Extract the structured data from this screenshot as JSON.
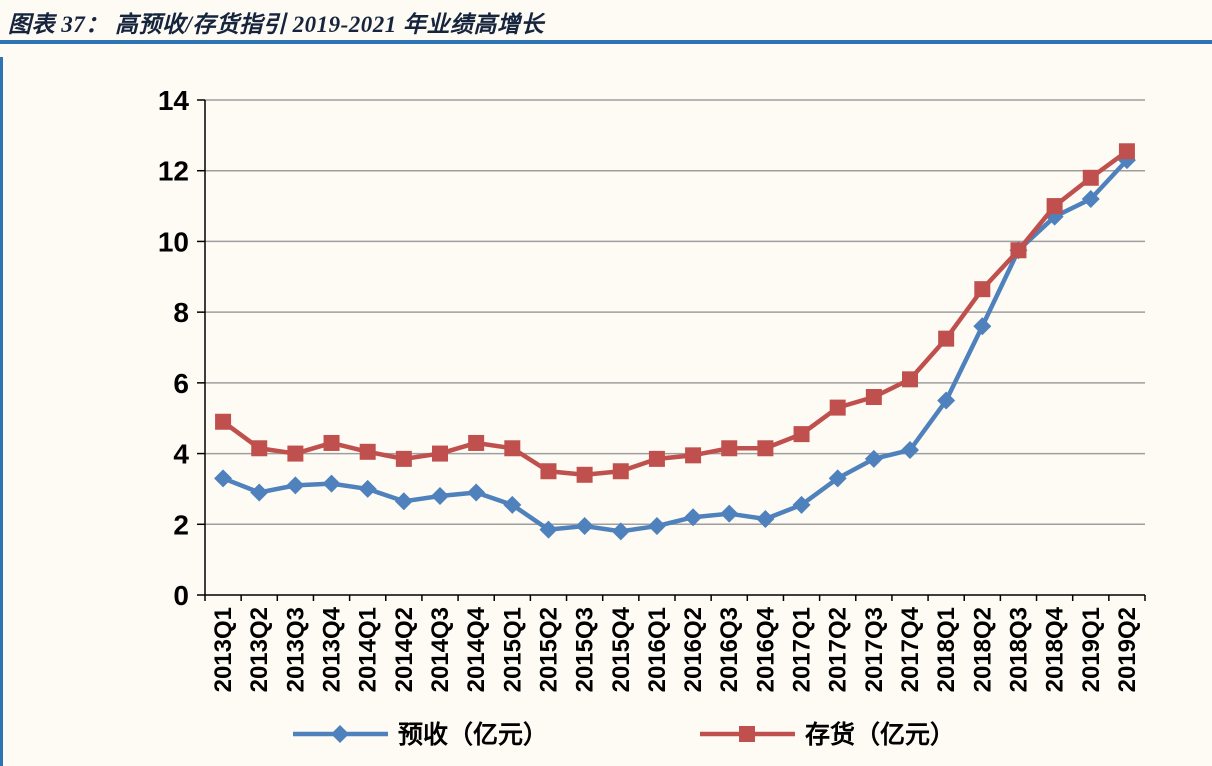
{
  "title": "图表 37： 高预收/存货指引 2019-2021 年业绩高增长",
  "colors": {
    "rule_blue": "#2e74b5",
    "title_text": "#16243d",
    "background": "#fdfbf4",
    "grid": "#9e9e9e",
    "axis": "#000000",
    "series_forecast": "#4f81bd",
    "series_inventory": "#c0504d"
  },
  "chart_data": {
    "type": "line",
    "title": "图表 37： 高预收/存货指引 2019-2021 年业绩高增长",
    "categories": [
      "2013Q1",
      "2013Q2",
      "2013Q3",
      "2013Q4",
      "2014Q1",
      "2014Q2",
      "2014Q3",
      "2014Q4",
      "2015Q1",
      "2015Q2",
      "2015Q3",
      "2015Q4",
      "2016Q1",
      "2016Q2",
      "2016Q3",
      "2016Q4",
      "2017Q1",
      "2017Q2",
      "2017Q3",
      "2017Q4",
      "2018Q1",
      "2018Q2",
      "2018Q3",
      "2018Q4",
      "2019Q1",
      "2019Q2"
    ],
    "series": [
      {
        "name": "预收（亿元）",
        "marker": "diamond",
        "color_key": "series_forecast",
        "values": [
          3.3,
          2.9,
          3.1,
          3.15,
          3.0,
          2.65,
          2.8,
          2.9,
          2.55,
          1.85,
          1.95,
          1.8,
          1.95,
          2.2,
          2.3,
          2.15,
          2.55,
          3.3,
          3.85,
          4.1,
          5.5,
          7.6,
          9.75,
          10.7,
          11.2,
          12.3
        ]
      },
      {
        "name": "存货（亿元）",
        "marker": "square",
        "color_key": "series_inventory",
        "values": [
          4.9,
          4.15,
          4.0,
          4.3,
          4.05,
          3.85,
          4.0,
          4.3,
          4.15,
          3.5,
          3.4,
          3.5,
          3.85,
          3.95,
          4.15,
          4.15,
          4.55,
          5.3,
          5.6,
          6.1,
          7.25,
          8.65,
          9.75,
          11.0,
          11.8,
          12.55
        ]
      }
    ],
    "ylim": [
      0,
      14
    ],
    "ytick_step": 2,
    "yticks": [
      0,
      2,
      4,
      6,
      8,
      10,
      12,
      14
    ],
    "grid": true,
    "legend_position": "bottom",
    "x_label_rotation": -90
  }
}
